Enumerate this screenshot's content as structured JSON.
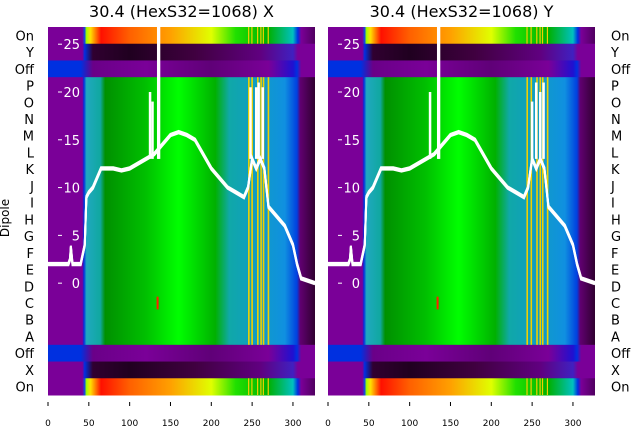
{
  "ylabel": "Dipole",
  "chart_data": [
    {
      "type": "heatmap",
      "title": "30.4 (HexS32=1068) X",
      "row_labels": [
        "On",
        "Y",
        "Off",
        "P",
        "O",
        "N",
        "M",
        "L",
        "K",
        "J",
        "I",
        "H",
        "G",
        "F",
        "E",
        "D",
        "C",
        "B",
        "A",
        "Off",
        "X",
        "On"
      ],
      "row_kinds": [
        "on",
        "dark",
        "off",
        "main",
        "main",
        "main",
        "main",
        "main",
        "main",
        "main",
        "main",
        "main",
        "main",
        "main",
        "main",
        "main",
        "main",
        "main",
        "main",
        "off",
        "dark",
        "on"
      ],
      "xlim": [
        0,
        327
      ],
      "xticks": [
        0,
        50,
        100,
        150,
        200,
        250,
        300
      ],
      "inner_yticks": [
        0,
        5,
        10,
        15,
        20,
        25
      ],
      "inner_ylim": [
        -11.7,
        26.8
      ],
      "stripes_x": [
        245,
        249,
        256,
        260,
        263,
        269
      ],
      "line": {
        "x": [
          0,
          25,
          27,
          28,
          30,
          40,
          45,
          47,
          50,
          55,
          60,
          65,
          70,
          80,
          90,
          100,
          110,
          120,
          130,
          135,
          140,
          150,
          160,
          170,
          180,
          190,
          200,
          210,
          220,
          230,
          240,
          245,
          250,
          255,
          260,
          265,
          270,
          280,
          290,
          300,
          305,
          310,
          327
        ],
        "y": [
          2,
          2,
          2.5,
          3.8,
          2,
          2,
          4,
          9,
          9.5,
          10,
          11,
          12,
          12,
          12,
          11.8,
          12,
          12.5,
          13,
          13.5,
          14,
          14.5,
          15.5,
          15.8,
          15.5,
          15,
          13.5,
          12,
          11,
          10,
          9.5,
          9,
          10,
          13,
          12,
          13,
          12,
          8,
          7,
          6,
          4,
          2,
          0.5,
          0
        ]
      },
      "spikes": [
        {
          "x": 125,
          "y": 20
        },
        {
          "x": 128,
          "y": 19
        },
        {
          "x": 135,
          "y": 27
        },
        {
          "x": 136,
          "y": 27
        },
        {
          "x": 248,
          "y": 20.5
        },
        {
          "x": 255,
          "y": 20.5
        },
        {
          "x": 258,
          "y": 21
        },
        {
          "x": 263,
          "y": 20.5
        }
      ]
    },
    {
      "type": "heatmap",
      "title": "30.4 (HexS32=1068) Y",
      "row_labels": [
        "On",
        "Y",
        "Off",
        "P",
        "O",
        "N",
        "M",
        "L",
        "K",
        "J",
        "I",
        "H",
        "G",
        "F",
        "E",
        "D",
        "C",
        "B",
        "A",
        "Off",
        "X",
        "On"
      ],
      "row_kinds": [
        "on",
        "dark",
        "off",
        "main",
        "main",
        "main",
        "main",
        "main",
        "main",
        "main",
        "main",
        "main",
        "main",
        "main",
        "main",
        "main",
        "main",
        "main",
        "main",
        "off",
        "dark",
        "on"
      ],
      "xlim": [
        0,
        327
      ],
      "xticks": [
        0,
        50,
        100,
        150,
        200,
        250,
        300
      ],
      "inner_yticks": [
        0,
        5,
        10,
        15,
        20,
        25
      ],
      "inner_ylim": [
        -11.7,
        26.8
      ],
      "stripes_x": [
        243,
        248,
        255,
        259,
        262,
        268
      ],
      "line": {
        "x": [
          0,
          25,
          27,
          28,
          30,
          40,
          45,
          47,
          50,
          55,
          60,
          65,
          70,
          80,
          90,
          100,
          110,
          120,
          130,
          135,
          140,
          150,
          160,
          170,
          180,
          190,
          200,
          210,
          220,
          230,
          240,
          245,
          250,
          255,
          260,
          265,
          270,
          280,
          290,
          300,
          305,
          310,
          327
        ],
        "y": [
          2,
          2,
          2.5,
          3.8,
          2,
          2,
          4,
          9,
          9.5,
          10,
          11,
          12,
          12,
          12,
          11.8,
          12,
          12.5,
          13,
          13.5,
          14,
          14.5,
          15.5,
          15.8,
          15.5,
          15,
          13.5,
          12,
          11,
          10,
          9.5,
          9,
          10,
          13,
          12,
          13,
          12,
          8,
          7,
          6,
          4,
          2,
          0.5,
          0
        ]
      },
      "spikes": [
        {
          "x": 125,
          "y": 20
        },
        {
          "x": 135,
          "y": 27
        },
        {
          "x": 136,
          "y": 27
        },
        {
          "x": 250,
          "y": 19
        },
        {
          "x": 255,
          "y": 21
        },
        {
          "x": 260,
          "y": 20
        },
        {
          "x": 264,
          "y": 21
        }
      ]
    }
  ],
  "colors": {
    "main": [
      [
        0,
        "#7a0098"
      ],
      [
        42,
        "#7a0098"
      ],
      [
        44,
        "#0030e0"
      ],
      [
        47,
        "#20a8c0"
      ],
      [
        64,
        "#10a8a0"
      ],
      [
        70,
        "#009000"
      ],
      [
        120,
        "#00c000"
      ],
      [
        160,
        "#00ff00"
      ],
      [
        205,
        "#00b000"
      ],
      [
        222,
        "#10a8a8"
      ],
      [
        290,
        "#1090e0"
      ],
      [
        305,
        "#0040e0"
      ],
      [
        309,
        "#600070"
      ],
      [
        327,
        "#300030"
      ]
    ],
    "on": [
      [
        0,
        "#7a0098"
      ],
      [
        42,
        "#7a0098"
      ],
      [
        45,
        "#1050e0"
      ],
      [
        47,
        "#a0ff00"
      ],
      [
        52,
        "#ffe000"
      ],
      [
        65,
        "#ff1000"
      ],
      [
        100,
        "#ff6000"
      ],
      [
        150,
        "#ffa000"
      ],
      [
        200,
        "#e0ff00"
      ],
      [
        230,
        "#20e000"
      ],
      [
        270,
        "#00b000"
      ],
      [
        300,
        "#00c0c0"
      ],
      [
        306,
        "#0030e0"
      ],
      [
        310,
        "#7a0098"
      ],
      [
        327,
        "#500060"
      ]
    ],
    "dark": [
      [
        0,
        "#7a0098"
      ],
      [
        42,
        "#7a0098"
      ],
      [
        45,
        "#0030e0"
      ],
      [
        55,
        "#300030"
      ],
      [
        100,
        "#200020"
      ],
      [
        180,
        "#400040"
      ],
      [
        260,
        "#600080"
      ],
      [
        300,
        "#4020c0"
      ],
      [
        306,
        "#7a0098"
      ],
      [
        327,
        "#7a0098"
      ]
    ],
    "off": [
      [
        0,
        "#0030e0"
      ],
      [
        40,
        "#0030e0"
      ],
      [
        55,
        "#6a0088"
      ],
      [
        120,
        "#7a0098"
      ],
      [
        200,
        "#600078"
      ],
      [
        270,
        "#7a0098"
      ],
      [
        300,
        "#2010d0"
      ],
      [
        305,
        "#0030e0"
      ],
      [
        310,
        "#7a0098"
      ],
      [
        327,
        "#7a0098"
      ]
    ],
    "stripe": "#f0d000",
    "line": "#ffffff"
  }
}
